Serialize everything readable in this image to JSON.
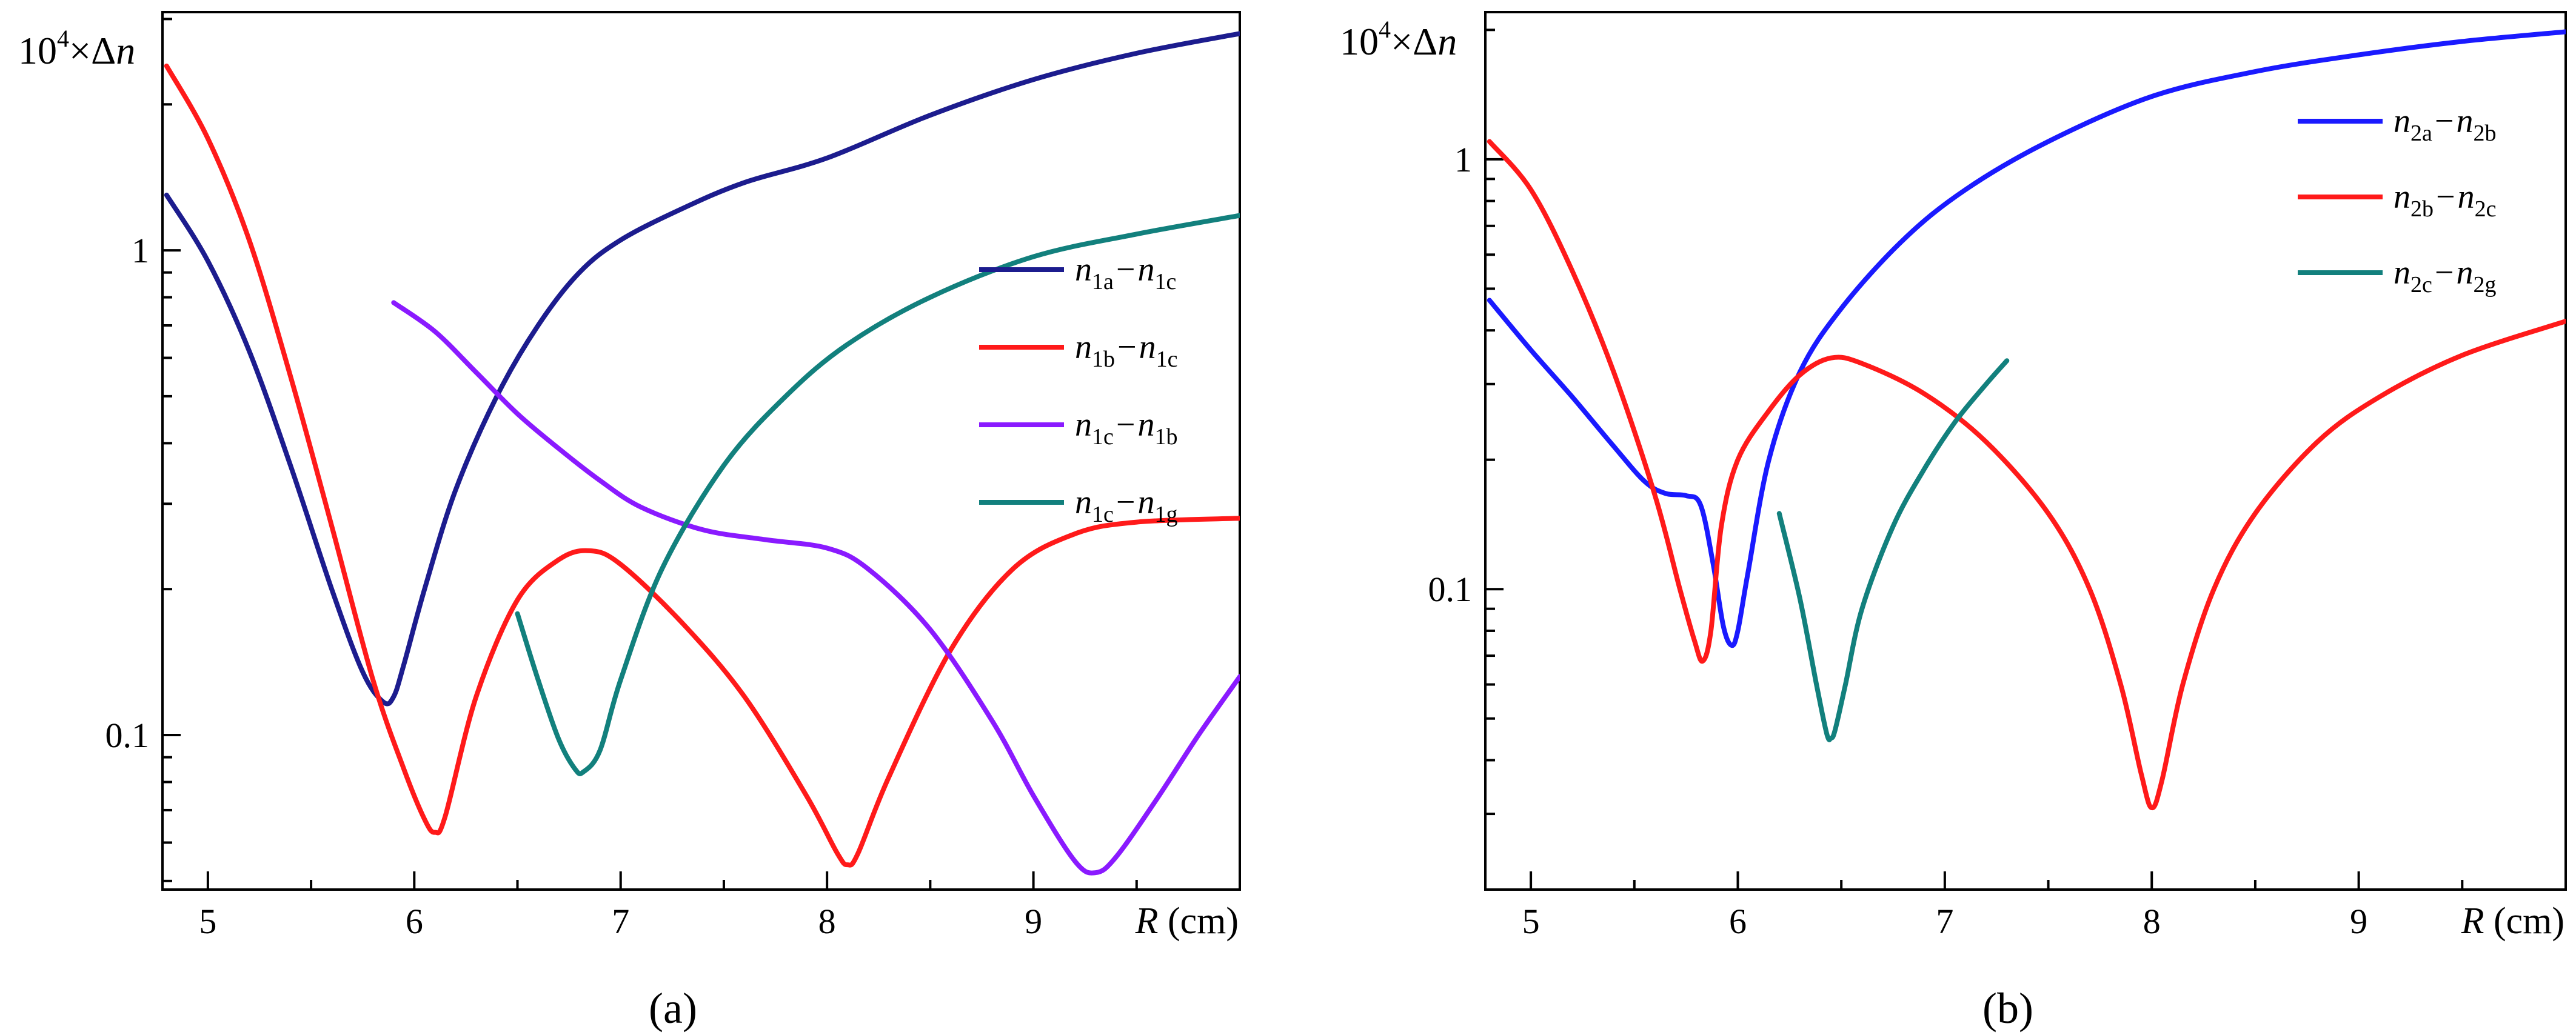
{
  "figure": {
    "panel_a_caption": "(a)",
    "panel_b_caption": "(b)"
  },
  "chart_data": [
    {
      "type": "line",
      "title": "",
      "panel": "a",
      "caption": "(a)",
      "ylabel": "10⁴×Δn",
      "ylabel_parts": {
        "base": "10",
        "exp": "4",
        "times": "×",
        "delta": "Δ",
        "var": "n"
      },
      "xlabel": "R (cm)",
      "xlabel_parts": {
        "var": "R",
        "unit": " (cm)"
      },
      "x_scale": "linear",
      "y_scale": "log",
      "xlim": [
        4.78,
        10.0
      ],
      "ylim": [
        0.048,
        3.1
      ],
      "x_ticks": [
        5,
        6,
        7,
        8,
        9
      ],
      "x_tick_labels": [
        "5",
        "6",
        "7",
        "8",
        "9"
      ],
      "y_ticks": [
        0.1,
        1
      ],
      "y_tick_labels": [
        "0.1",
        "1"
      ],
      "legend_position": "center-right",
      "series": [
        {
          "name": "n1a−n1c",
          "label_parts": {
            "a": "n",
            "a_sub": "1a",
            "b": "n",
            "b_sub": "1c"
          },
          "color": "#1c1c8e",
          "x": [
            4.8,
            5.0,
            5.2,
            5.4,
            5.6,
            5.75,
            5.85,
            5.9,
            5.95,
            6.05,
            6.2,
            6.4,
            6.6,
            6.8,
            7.0,
            7.3,
            7.6,
            8.0,
            8.5,
            9.0,
            9.5,
            10.0
          ],
          "y": [
            1.3,
            0.95,
            0.62,
            0.36,
            0.2,
            0.135,
            0.117,
            0.12,
            0.14,
            0.2,
            0.32,
            0.5,
            0.7,
            0.9,
            1.05,
            1.22,
            1.38,
            1.55,
            1.9,
            2.25,
            2.55,
            2.8
          ]
        },
        {
          "name": "n1b−n1c",
          "label_parts": {
            "a": "n",
            "a_sub": "1b",
            "b": "n",
            "b_sub": "1c"
          },
          "color": "#ff1a1a",
          "x": [
            4.8,
            5.0,
            5.2,
            5.4,
            5.6,
            5.8,
            5.95,
            6.05,
            6.1,
            6.15,
            6.3,
            6.5,
            6.7,
            6.85,
            7.0,
            7.3,
            7.6,
            7.9,
            8.05,
            8.1,
            8.15,
            8.3,
            8.6,
            8.9,
            9.2,
            9.5,
            10.0
          ],
          "y": [
            2.4,
            1.7,
            1.05,
            0.55,
            0.27,
            0.13,
            0.085,
            0.067,
            0.063,
            0.068,
            0.12,
            0.19,
            0.23,
            0.24,
            0.225,
            0.17,
            0.12,
            0.075,
            0.057,
            0.054,
            0.057,
            0.082,
            0.15,
            0.22,
            0.26,
            0.275,
            0.28
          ]
        },
        {
          "name": "n1c−n1b",
          "label_parts": {
            "a": "n",
            "a_sub": "1c",
            "b": "n",
            "b_sub": "1b"
          },
          "color": "#8a1aff",
          "x": [
            5.9,
            6.1,
            6.3,
            6.5,
            6.7,
            6.9,
            7.1,
            7.4,
            7.7,
            8.0,
            8.2,
            8.5,
            8.8,
            9.0,
            9.2,
            9.3,
            9.4,
            9.6,
            9.8,
            10.0
          ],
          "y": [
            0.78,
            0.68,
            0.56,
            0.46,
            0.39,
            0.335,
            0.295,
            0.265,
            0.253,
            0.243,
            0.22,
            0.165,
            0.107,
            0.075,
            0.055,
            0.052,
            0.056,
            0.074,
            0.1,
            0.132
          ]
        },
        {
          "name": "n1c−n1g",
          "label_parts": {
            "a": "n",
            "a_sub": "1c",
            "b": "n",
            "b_sub": "1g"
          },
          "color": "#12807d",
          "x": [
            6.5,
            6.6,
            6.7,
            6.78,
            6.82,
            6.9,
            7.0,
            7.2,
            7.5,
            7.8,
            8.1,
            8.5,
            9.0,
            9.5,
            10.0
          ],
          "y": [
            0.178,
            0.13,
            0.098,
            0.085,
            0.084,
            0.093,
            0.13,
            0.22,
            0.36,
            0.5,
            0.64,
            0.8,
            0.97,
            1.08,
            1.18
          ]
        }
      ]
    },
    {
      "type": "line",
      "title": "",
      "panel": "b",
      "caption": "(b)",
      "ylabel": "10⁴×Δn",
      "ylabel_parts": {
        "base": "10",
        "exp": "4",
        "times": "×",
        "delta": "Δ",
        "var": "n"
      },
      "xlabel": "R (cm)",
      "xlabel_parts": {
        "var": "R",
        "unit": " (cm)"
      },
      "x_scale": "linear",
      "y_scale": "log",
      "xlim": [
        4.78,
        10.0
      ],
      "ylim": [
        0.02,
        2.2
      ],
      "x_ticks": [
        5,
        6,
        7,
        8,
        9
      ],
      "x_tick_labels": [
        "5",
        "6",
        "7",
        "8",
        "9"
      ],
      "y_ticks": [
        0.1,
        1
      ],
      "y_tick_labels": [
        "0.1",
        "1"
      ],
      "legend_position": "top-right",
      "series": [
        {
          "name": "n2a−n2b",
          "label_parts": {
            "a": "n",
            "a_sub": "2a",
            "b": "n",
            "b_sub": "2b"
          },
          "color": "#1a1aff",
          "x": [
            4.8,
            5.0,
            5.2,
            5.4,
            5.55,
            5.65,
            5.75,
            5.82,
            5.88,
            5.93,
            5.97,
            6.0,
            6.05,
            6.15,
            6.3,
            6.5,
            6.8,
            7.1,
            7.5,
            8.0,
            8.5,
            9.0,
            9.5,
            10.0
          ],
          "y": [
            0.47,
            0.36,
            0.28,
            0.215,
            0.178,
            0.167,
            0.165,
            0.157,
            0.115,
            0.082,
            0.074,
            0.08,
            0.11,
            0.2,
            0.32,
            0.45,
            0.65,
            0.85,
            1.1,
            1.4,
            1.6,
            1.75,
            1.88,
            1.98
          ]
        },
        {
          "name": "n2b−n2c",
          "label_parts": {
            "a": "n",
            "a_sub": "2b",
            "b": "n",
            "b_sub": "2c"
          },
          "color": "#ff1a1a",
          "x": [
            4.8,
            5.0,
            5.2,
            5.4,
            5.6,
            5.72,
            5.79,
            5.83,
            5.87,
            5.92,
            6.0,
            6.15,
            6.3,
            6.45,
            6.6,
            6.9,
            7.2,
            7.5,
            7.7,
            7.85,
            7.95,
            8.0,
            8.05,
            8.15,
            8.3,
            8.5,
            8.8,
            9.1,
            9.5,
            10.0
          ],
          "y": [
            1.1,
            0.85,
            0.55,
            0.32,
            0.165,
            0.1,
            0.076,
            0.068,
            0.08,
            0.14,
            0.2,
            0.26,
            0.315,
            0.345,
            0.335,
            0.285,
            0.22,
            0.15,
            0.1,
            0.06,
            0.037,
            0.031,
            0.036,
            0.06,
            0.1,
            0.15,
            0.22,
            0.28,
            0.35,
            0.42
          ]
        },
        {
          "name": "n2c−n2g",
          "label_parts": {
            "a": "n",
            "a_sub": "2c",
            "b": "n",
            "b_sub": "2g"
          },
          "color": "#12807d",
          "x": [
            6.2,
            6.3,
            6.38,
            6.43,
            6.45,
            6.47,
            6.52,
            6.6,
            6.75,
            6.9,
            7.05,
            7.2,
            7.3
          ],
          "y": [
            0.15,
            0.095,
            0.06,
            0.046,
            0.045,
            0.047,
            0.06,
            0.09,
            0.14,
            0.19,
            0.245,
            0.3,
            0.34
          ]
        }
      ]
    }
  ]
}
